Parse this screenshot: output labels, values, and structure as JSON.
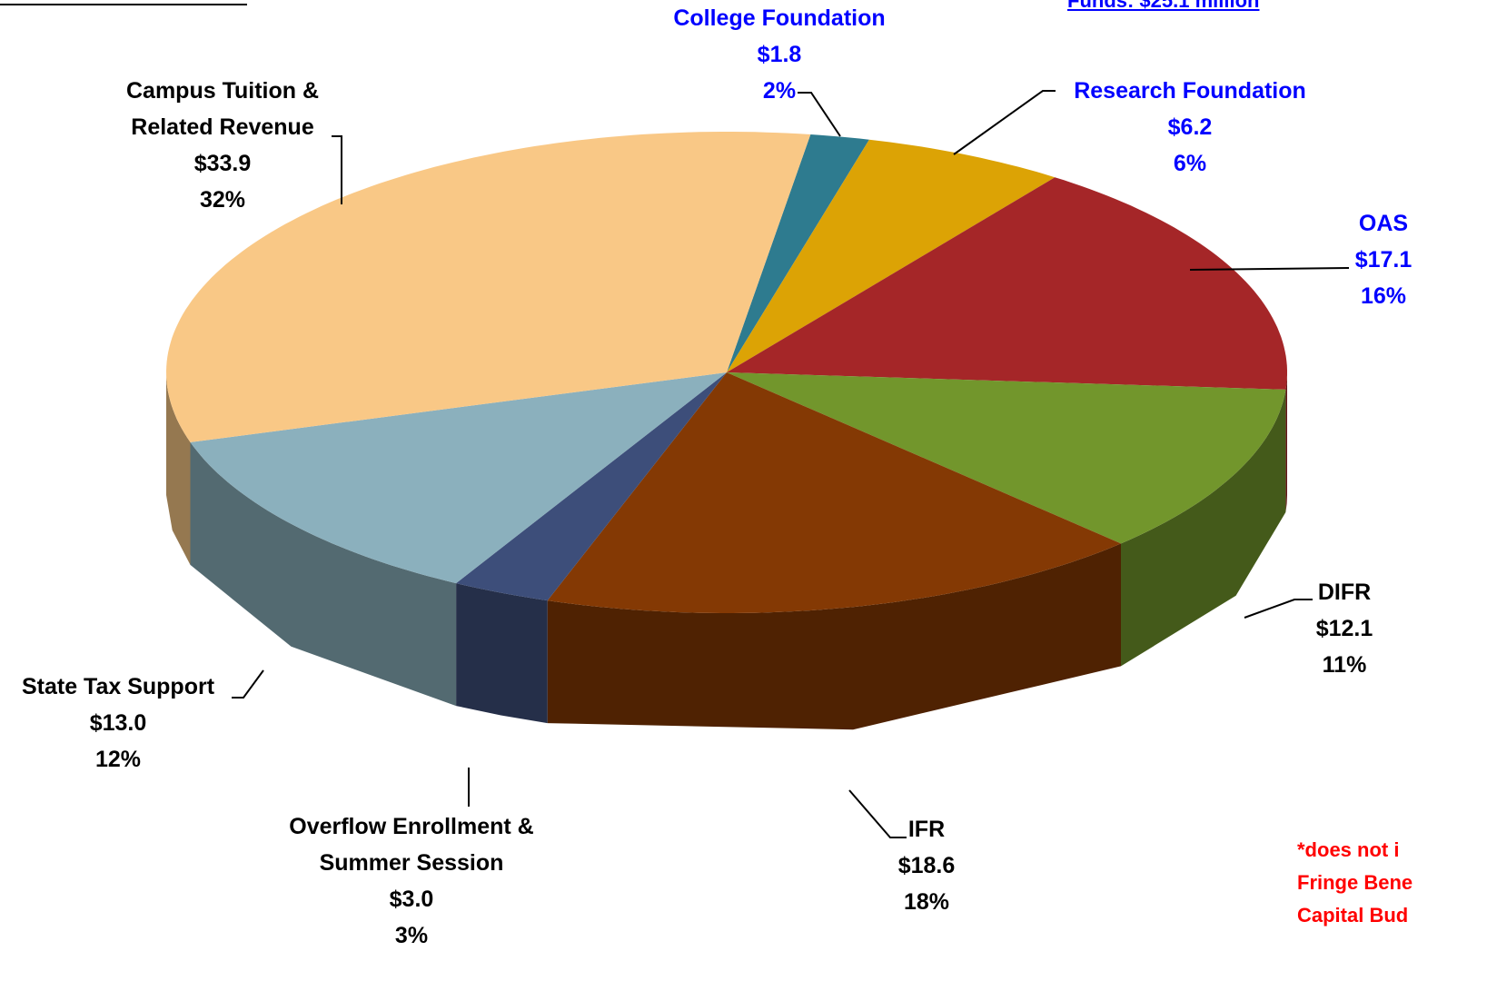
{
  "chart_data": {
    "type": "pie",
    "categories": [
      "College Foundation",
      "Research Foundation",
      "OAS",
      "DIFR",
      "IFR",
      "Overflow Enrollment & Summer Session",
      "State Tax Support",
      "Campus Tuition & Related Revenue"
    ],
    "values": [
      1.8,
      6.2,
      17.1,
      12.1,
      18.6,
      3.0,
      13.0,
      33.9
    ],
    "value_labels": [
      "$1.8",
      "$6.2",
      "$17.1",
      "$12.1",
      "$18.6",
      "$3.0",
      "$13.0",
      "$33.9"
    ],
    "shares": [
      2,
      6,
      16,
      11,
      18,
      3,
      12,
      32
    ],
    "share_labels": [
      "2%",
      "6%",
      "16%",
      "11%",
      "18%",
      "3%",
      "12%",
      "32%"
    ],
    "colors": [
      "#2e7b8f",
      "#dca305",
      "#a52628",
      "#72962c",
      "#843904",
      "#3d4e7a",
      "#8bb0bd",
      "#f9c886"
    ],
    "label_colors": [
      "#0000ff",
      "#0000ff",
      "#0000ff",
      "#000000",
      "#000000",
      "#000000",
      "#000000",
      "#000000"
    ],
    "header_note": "Funds:  $25.1 million",
    "footnote": [
      "*does not i",
      "Fringe Bene",
      "Capital Bud"
    ]
  }
}
